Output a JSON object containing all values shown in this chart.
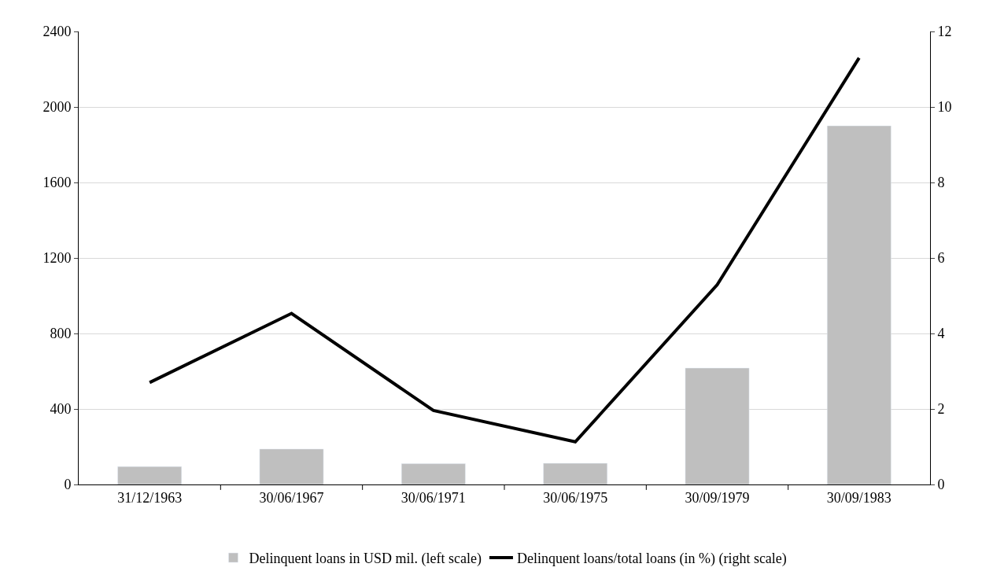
{
  "chart_data": {
    "type": "bar",
    "categories": [
      "31/12/1963",
      "30/06/1967",
      "30/06/1971",
      "30/06/1975",
      "30/09/1979",
      "30/09/1983"
    ],
    "series": [
      {
        "name": "Delinquent loans in USD mil. (left scale)",
        "color": "#bfbfbf",
        "values": [
          95,
          188,
          110,
          112,
          617,
          1900
        ]
      },
      {
        "name": "Delinquent loans/total loans (in %) (right scale)",
        "color": "#000000",
        "type": "line",
        "axis": "y2",
        "values": [
          2.7,
          4.53,
          1.96,
          1.13,
          5.29,
          11.3
        ]
      }
    ],
    "ylim": [
      0,
      2400
    ],
    "yticks": [
      0,
      400,
      800,
      1200,
      1600,
      2000,
      2400
    ],
    "y2lim": [
      0,
      12
    ],
    "y2ticks": [
      0,
      2,
      4,
      6,
      8,
      10,
      12
    ],
    "grid": "y",
    "legend": "bottom",
    "marker": "none",
    "line_style": "solid"
  }
}
